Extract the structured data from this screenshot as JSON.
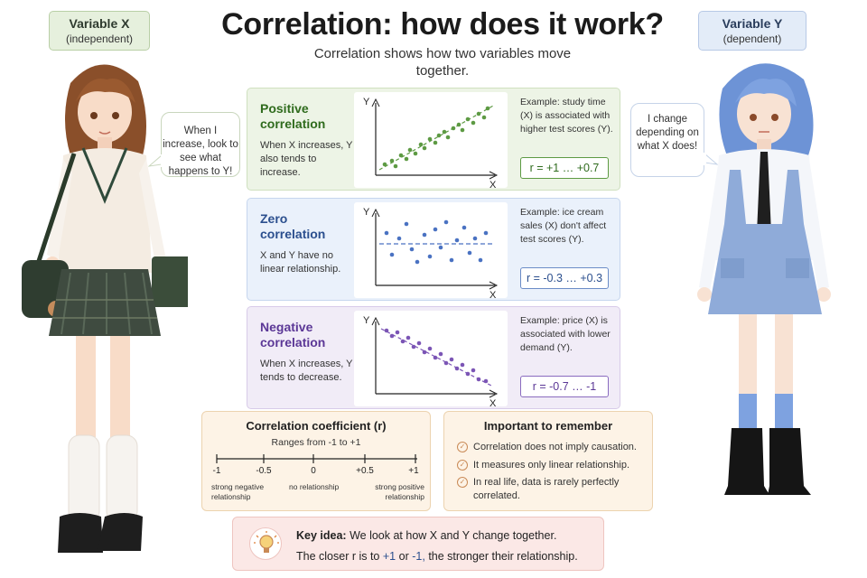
{
  "title": "Correlation: how does it work?",
  "subtitle": "Correlation shows how two variables move together.",
  "variable_x": {
    "name": "Variable X",
    "role": "(independent)"
  },
  "variable_y": {
    "name": "Variable Y",
    "role": "(dependent)"
  },
  "bubble_x": "When I increase, look to see what happens to Y!",
  "bubble_y": "I change depending on what X does!",
  "panels": [
    {
      "title": "Positive correlation",
      "description": "When X increases, Y also tends to increase.",
      "example": "Example: study time (X) is associated with higher test scores (Y).",
      "r_range": "r = +1 … +0.7",
      "axis_y": "Y",
      "axis_x": "X",
      "color": "#5d9a43"
    },
    {
      "title": "Zero correlation",
      "description": "X and Y have no linear relationship.",
      "example": "Example: ice cream sales (X) don't affect test scores (Y).",
      "r_range": "r = -0.3 … +0.3",
      "axis_y": "Y",
      "axis_x": "X",
      "color": "#4a72c2"
    },
    {
      "title": "Negative correlation",
      "description": "When X increases, Y tends to decrease.",
      "example": "Example: price (X) is associated with lower demand (Y).",
      "r_range": "r = -0.7 … -1",
      "axis_y": "Y",
      "axis_x": "X",
      "color": "#7b55b5"
    }
  ],
  "coefficient": {
    "title": "Correlation coefficient (r)",
    "range": "Ranges from -1 to +1",
    "ticks": [
      "-1",
      "-0.5",
      "0",
      "+0.5",
      "+1"
    ],
    "label_left": "strong negative relationship",
    "label_mid": "no relationship",
    "label_right": "strong positive relationship"
  },
  "remember": {
    "title": "Important to remember",
    "items": [
      "Correlation does not imply causation.",
      "It measures only linear relationship.",
      "In real life, data is rarely perfectly correlated."
    ]
  },
  "key_idea": {
    "label": "Key idea:",
    "line1": "We look at how X and Y change together.",
    "line2_a": "The closer r is to",
    "line2_plus": "+1",
    "line2_or": "or",
    "line2_minus": "-1,",
    "line2_b": "the stronger their relationship."
  },
  "icons": {
    "check": "check-circle-icon",
    "bulb": "lightbulb-icon"
  }
}
